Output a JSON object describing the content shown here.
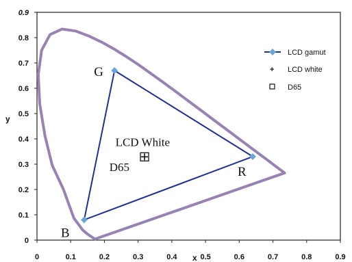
{
  "chart_data": {
    "type": "scatter",
    "title": "",
    "xlabel": "x",
    "ylabel": "y",
    "xlim": [
      0,
      0.9
    ],
    "ylim": [
      0,
      0.9
    ],
    "x_ticks": [
      "0",
      "0.1",
      "0.2",
      "0.3",
      "0.4",
      "0.5",
      "0.6",
      "0.7",
      "0.8",
      "0.9"
    ],
    "y_ticks": [
      "0",
      "0.1",
      "0.2",
      "0.3",
      "0.4",
      "0.5",
      "0.6",
      "0.7",
      "0.8",
      "0.9"
    ],
    "grid": false,
    "legend_position": "top-right",
    "colors": {
      "gamut": "#1f2f9a",
      "gamut_marker": "#6aa5d8",
      "locus": "#9882b4"
    },
    "series": [
      {
        "name": "LCD gamut",
        "x": [
          0.64,
          0.23,
          0.14,
          0.64
        ],
        "y": [
          0.33,
          0.67,
          0.08,
          0.33
        ]
      },
      {
        "name": "LCD white",
        "x": [
          0.313
        ],
        "y": [
          0.329
        ]
      },
      {
        "name": "D65",
        "x": [
          0.3127
        ],
        "y": [
          0.329
        ]
      }
    ],
    "locus": {
      "x": [
        0.1741,
        0.1738,
        0.1726,
        0.1703,
        0.1666,
        0.1611,
        0.151,
        0.1355,
        0.1096,
        0.0782,
        0.0454,
        0.0235,
        0.0082,
        0.0039,
        0.0139,
        0.0389,
        0.0743,
        0.1142,
        0.1547,
        0.1929,
        0.2296,
        0.2658,
        0.3016,
        0.3373,
        0.3731,
        0.4087,
        0.4441,
        0.4788,
        0.5125,
        0.5448,
        0.5752,
        0.6029,
        0.627,
        0.6482,
        0.6658,
        0.6801,
        0.6915,
        0.7006,
        0.7079,
        0.714,
        0.719,
        0.723,
        0.726,
        0.7283,
        0.73,
        0.7347
      ],
      "y": [
        0.005,
        0.0049,
        0.0048,
        0.0058,
        0.0089,
        0.0138,
        0.0227,
        0.0399,
        0.0868,
        0.2013,
        0.295,
        0.4127,
        0.5384,
        0.6548,
        0.7502,
        0.812,
        0.8338,
        0.8262,
        0.8059,
        0.7816,
        0.7543,
        0.7243,
        0.6923,
        0.6589,
        0.6245,
        0.5896,
        0.5547,
        0.5202,
        0.4866,
        0.4544,
        0.4242,
        0.3965,
        0.3725,
        0.3514,
        0.334,
        0.3197,
        0.3083,
        0.2993,
        0.292,
        0.2859,
        0.2809,
        0.277,
        0.274,
        0.2717,
        0.27,
        0.2653
      ]
    },
    "annotations": [
      {
        "text": "G",
        "x": 0.23,
        "y": 0.67
      },
      {
        "text": "R",
        "x": 0.64,
        "y": 0.33
      },
      {
        "text": "B",
        "x": 0.14,
        "y": 0.08
      },
      {
        "text": "LCD White",
        "x": 0.31,
        "y": 0.38
      },
      {
        "text": "D65",
        "x": 0.29,
        "y": 0.3
      }
    ]
  }
}
